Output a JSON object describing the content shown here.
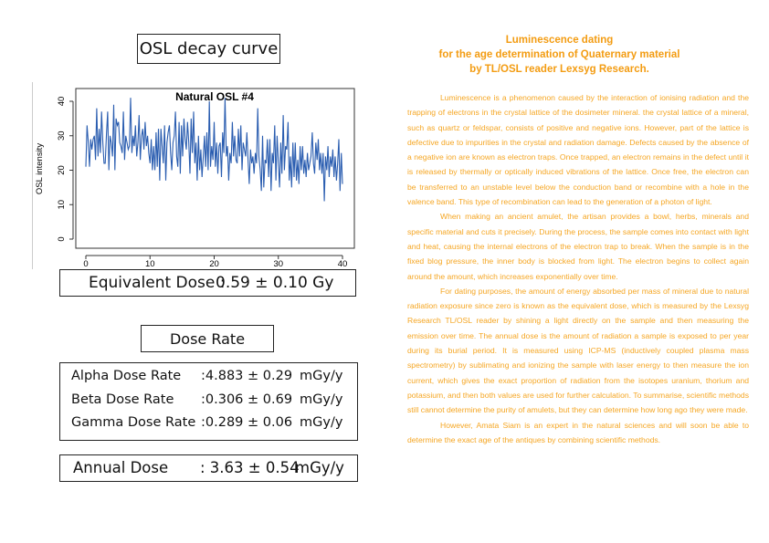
{
  "left": {
    "chart_title_box": "OSL decay curve",
    "equivalent_dose": {
      "label": "Equivalent Dose :",
      "value": "0.59 ± 0.10 Gy"
    },
    "dose_rate_title": "Dose Rate",
    "dose_rates": [
      {
        "label": "Alpha Dose Rate",
        "value": ":4.883 ± 0.29",
        "unit": "mGy/y"
      },
      {
        "label": "Beta Dose Rate",
        "value": ":0.306 ± 0.69",
        "unit": "mGy/y"
      },
      {
        "label": "Gamma Dose Rate",
        "value": ":0.289 ± 0.06",
        "unit": "mGy/y"
      }
    ],
    "annual_dose": {
      "label": "Annual Dose",
      "value": ": 3.63 ± 0.54",
      "unit": "mGy/y"
    }
  },
  "chart_data": {
    "type": "line",
    "title": "Natural OSL #4",
    "xlabel": "",
    "ylabel": "OSL intensity",
    "xlim": [
      0,
      40
    ],
    "ylim": [
      0,
      40
    ],
    "xticks": [
      "0",
      "10",
      "20",
      "30",
      "40"
    ],
    "yticks": [
      "0",
      "10",
      "20",
      "30",
      "40"
    ],
    "color": "#2a5db0",
    "x_step": 0.333,
    "values": [
      21,
      33,
      28,
      21,
      29,
      26,
      29,
      30,
      23,
      38,
      24,
      32,
      25,
      37,
      28,
      22,
      22,
      30,
      37,
      20,
      30,
      28,
      24,
      39,
      20,
      35,
      33,
      34,
      28,
      27,
      25,
      37,
      23,
      30,
      28,
      26,
      27,
      41,
      25,
      30,
      27,
      33,
      24,
      28,
      36,
      23,
      30,
      32,
      26,
      34,
      27,
      30,
      25,
      22,
      29,
      20,
      27,
      20,
      31,
      21,
      32,
      17,
      32,
      27,
      22,
      33,
      17,
      28,
      31,
      33,
      25,
      20,
      28,
      30,
      37,
      24,
      21,
      34,
      19,
      33,
      24,
      35,
      29,
      26,
      34,
      28,
      19,
      35,
      25,
      37,
      22,
      28,
      17,
      30,
      20,
      26,
      18,
      24,
      30,
      21,
      31,
      20,
      40,
      21,
      27,
      23,
      34,
      21,
      28,
      19,
      27,
      28,
      18,
      31,
      25,
      41,
      24,
      27,
      17,
      25,
      22,
      34,
      24,
      30,
      23,
      22,
      32,
      24,
      33,
      20,
      28,
      26,
      24,
      31,
      23,
      16,
      26,
      22,
      24,
      19,
      25,
      22,
      38,
      24,
      20,
      14,
      30,
      15,
      23,
      22,
      29,
      18,
      29,
      14,
      25,
      22,
      33,
      17,
      30,
      22,
      15,
      28,
      19,
      36,
      20,
      27,
      26,
      34,
      17,
      24,
      15,
      28,
      18,
      28,
      17,
      23,
      16,
      27,
      20,
      27,
      19,
      23,
      18,
      25,
      20,
      22,
      24,
      31,
      22,
      19,
      28,
      23,
      29,
      20,
      25,
      19,
      25,
      11,
      24,
      20,
      27,
      18,
      24,
      21,
      26,
      18,
      24,
      17,
      22,
      29,
      14,
      25,
      16
    ]
  },
  "right": {
    "title_lines": [
      "Luminescence dating",
      "for the age determination of Quaternary material",
      "by TL/OSL reader Lexsyg Research."
    ],
    "paragraphs": [
      "Luminescence is a phenomenon caused by the interaction of ionising radiation and the trapping of electrons in the crystal lattice of the dosimeter mineral. the crystal lattice of a mineral, such as quartz or feldspar, consists of positive and negative ions. However, part of the lattice is defective due to impurities in the crystal and radiation damage. Defects caused by the absence of a negative ion are known as electron traps. Once trapped, an electron remains in the defect until it is released by thermally or optically induced vibrations of the lattice. Once free, the electron can be transferred to an unstable level below the conduction band or recombine with a hole in the valence band. This type of recombination can lead to the generation of a photon of light.",
      "When making an ancient amulet, the artisan provides a bowl, herbs, minerals and specific material and cuts it precisely. During the process, the sample comes into contact with light and heat, causing the internal electrons of the electron trap to break. When the sample is in the fixed blog pressure, the inner body is blocked from light. The electron begins to collect again around the amount, which increases exponentially over time.",
      "For dating purposes, the amount of energy absorbed per mass of mineral due to natural radiation exposure since zero is known as the equivalent dose, which is measured by the Lexsyg Research TL/OSL reader by shining a light directly on the sample and then measuring the emission over time. The annual dose is the amount of radiation a sample is exposed to per year during its burial period. It is measured using ICP-MS (inductively coupled plasma mass spectrometry) by sublimating and ionizing the sample with laser energy to then measure the ion current, which gives the exact proportion of radiation from the isotopes uranium, thorium and potassium, and then both values are used for further calculation. To summarise, scientific methods still cannot determine the purity of amulets, but they can determine how long ago they were made.",
      "However, Amata Siam is an expert in the natural sciences and will soon be able to determine the exact age of the antiques by combining scientific methods."
    ]
  }
}
